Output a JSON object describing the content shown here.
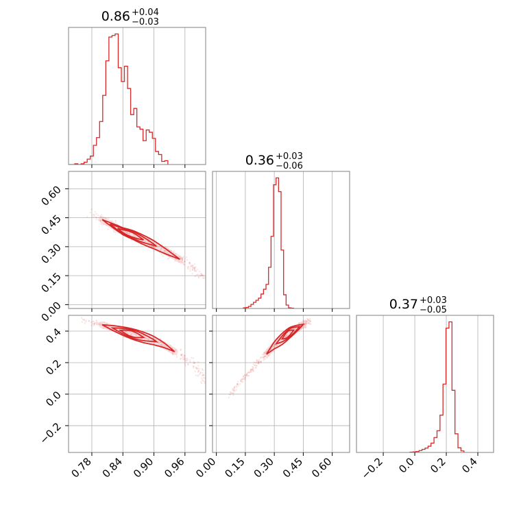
{
  "chart_data": {
    "type": "corner",
    "color": "#d62728",
    "grid": true,
    "parameters": [
      {
        "title": {
          "median": "0.86",
          "plus": "+0.04",
          "minus": "−0.03"
        },
        "range": [
          0.735,
          1.0
        ],
        "ticks": [
          {
            "value": 0.78,
            "label": "0.78"
          },
          {
            "value": 0.84,
            "label": "0.84"
          },
          {
            "value": 0.9,
            "label": "0.90"
          },
          {
            "value": 0.96,
            "label": "0.96"
          }
        ],
        "hist": {
          "start": 0.735,
          "bin_width": 0.006,
          "counts": [
            0,
            0,
            1,
            0,
            1,
            3,
            7,
            11,
            25,
            35,
            56,
            90,
            135,
            166,
            168,
            170,
            126,
            108,
            128,
            99,
            65,
            73,
            49,
            46,
            31,
            45,
            42,
            34,
            17,
            13,
            4,
            5
          ]
        }
      },
      {
        "title": {
          "median": "0.36",
          "plus": "+0.03",
          "minus": "−0.06"
        },
        "range": [
          -0.02,
          0.69
        ],
        "ticks": [
          {
            "value": 0.0,
            "label": "0.00"
          },
          {
            "value": 0.15,
            "label": "0.15"
          },
          {
            "value": 0.3,
            "label": "0.30"
          },
          {
            "value": 0.45,
            "label": "0.45"
          },
          {
            "value": 0.6,
            "label": "0.60"
          }
        ],
        "hist": {
          "start": 0.14,
          "bin_width": 0.013,
          "counts": [
            2,
            3,
            6,
            12,
            18,
            24,
            30,
            42,
            56,
            70,
            120,
            210,
            360,
            380,
            340,
            170,
            40,
            10,
            2,
            1
          ]
        }
      },
      {
        "title": {
          "median": "0.37",
          "plus": "+0.03",
          "minus": "−0.05"
        },
        "range": [
          -0.37,
          0.5
        ],
        "ticks": [
          {
            "value": -0.2,
            "label": "−0.2"
          },
          {
            "value": 0.0,
            "label": "0.0"
          },
          {
            "value": 0.2,
            "label": "0.2"
          },
          {
            "value": 0.4,
            "label": "0.4"
          }
        ],
        "hist": {
          "start": -0.03,
          "bin_width": 0.019,
          "counts": [
            1,
            2,
            3,
            6,
            10,
            14,
            20,
            30,
            48,
            70,
            120,
            220,
            400,
            420,
            200,
            60,
            15,
            5
          ]
        }
      }
    ],
    "contour_paths": [
      {
        "x_param": 0,
        "y_param": 1,
        "ridge": [
          [
            0.78,
            0.47
          ],
          [
            0.8,
            0.44
          ],
          [
            0.82,
            0.41
          ],
          [
            0.84,
            0.38
          ],
          [
            0.86,
            0.36
          ],
          [
            0.88,
            0.335
          ],
          [
            0.9,
            0.31
          ],
          [
            0.92,
            0.28
          ],
          [
            0.94,
            0.25
          ],
          [
            0.96,
            0.22
          ],
          [
            0.98,
            0.18
          ],
          [
            0.995,
            0.14
          ]
        ],
        "levels": [
          {
            "from": 0.83,
            "to": 0.88,
            "width": 0.012
          },
          {
            "from": 0.815,
            "to": 0.905,
            "width": 0.018
          },
          {
            "from": 0.8,
            "to": 0.95,
            "width": 0.024
          }
        ]
      },
      {
        "x_param": 0,
        "y_param": 2,
        "ridge": [
          [
            0.76,
            0.47
          ],
          [
            0.79,
            0.45
          ],
          [
            0.82,
            0.42
          ],
          [
            0.85,
            0.39
          ],
          [
            0.87,
            0.37
          ],
          [
            0.9,
            0.34
          ],
          [
            0.92,
            0.31
          ],
          [
            0.95,
            0.25
          ],
          [
            0.97,
            0.2
          ],
          [
            0.99,
            0.14
          ],
          [
            1.0,
            0.06
          ]
        ],
        "levels": [
          {
            "from": 0.835,
            "to": 0.88,
            "width": 0.018
          },
          {
            "from": 0.82,
            "to": 0.905,
            "width": 0.026
          },
          {
            "from": 0.8,
            "to": 0.94,
            "width": 0.034
          }
        ]
      },
      {
        "x_param": 1,
        "y_param": 2,
        "ridge": [
          [
            0.06,
            -0.02
          ],
          [
            0.1,
            0.04
          ],
          [
            0.15,
            0.11
          ],
          [
            0.2,
            0.18
          ],
          [
            0.25,
            0.24
          ],
          [
            0.3,
            0.31
          ],
          [
            0.34,
            0.35
          ],
          [
            0.38,
            0.39
          ],
          [
            0.42,
            0.42
          ],
          [
            0.46,
            0.45
          ],
          [
            0.49,
            0.46
          ]
        ],
        "levels": [
          {
            "from": 0.34,
            "to": 0.4,
            "width": 0.018
          },
          {
            "from": 0.31,
            "to": 0.43,
            "width": 0.026
          },
          {
            "from": 0.26,
            "to": 0.45,
            "width": 0.036
          }
        ]
      }
    ]
  }
}
